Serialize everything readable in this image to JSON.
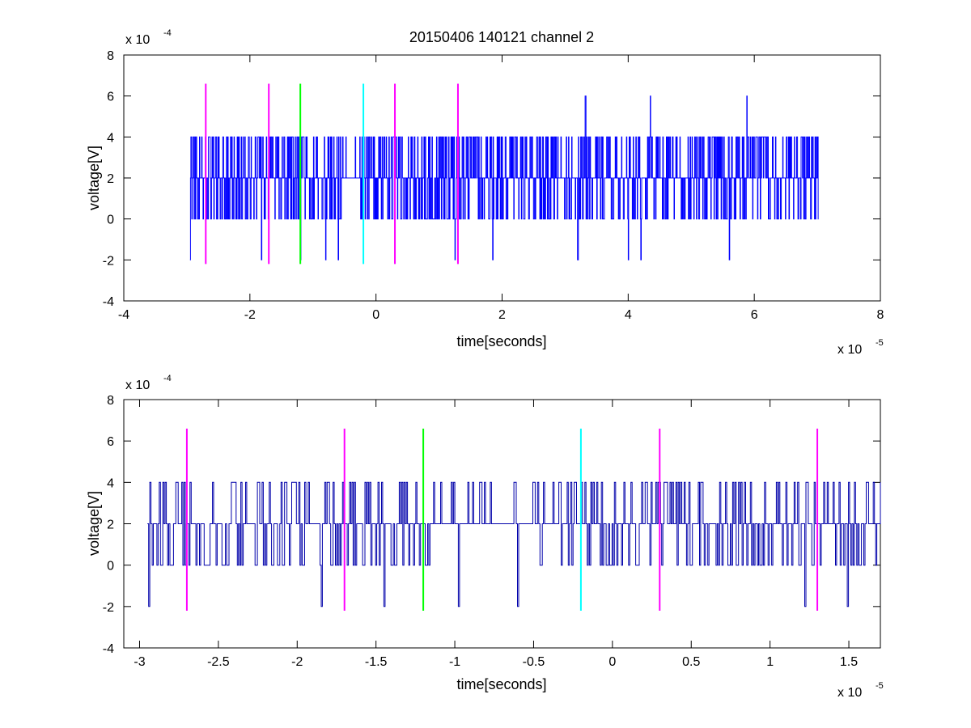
{
  "chart_data": [
    {
      "type": "line",
      "title": "20150406 140121 channel 2",
      "xlabel": "time[seconds]",
      "ylabel": "voltage[V]",
      "x_exponent_label": "x 10",
      "x_exponent": "-5",
      "y_exponent_label": "x 10",
      "y_exponent": "-4",
      "xlim": [
        -4,
        8
      ],
      "ylim": [
        -4,
        8
      ],
      "x_ticks": [
        -4,
        -2,
        0,
        2,
        4,
        6,
        8
      ],
      "x_tick_labels": [
        "-4",
        "-2",
        "0",
        "2",
        "4",
        "6",
        "8"
      ],
      "y_ticks": [
        -4,
        -2,
        0,
        2,
        4,
        6,
        8
      ],
      "y_tick_labels": [
        "-4",
        "-2",
        "0",
        "2",
        "4",
        "6",
        "8"
      ],
      "signal_color": "#0000ff",
      "signal": {
        "x_start": -2.95,
        "x_end": 7.02,
        "levels": [
          -2,
          0,
          2,
          4,
          6
        ],
        "spikes": [
          {
            "x": 3.32,
            "y": 6
          },
          {
            "x": 4.35,
            "y": 6
          },
          {
            "x": 5.88,
            "y": 6
          },
          {
            "x": -2.95,
            "y": -2
          },
          {
            "x": -1.82,
            "y": -2
          },
          {
            "x": -1.2,
            "y": -2
          },
          {
            "x": -0.8,
            "y": -2
          },
          {
            "x": -0.6,
            "y": -2
          },
          {
            "x": 1.25,
            "y": -2
          },
          {
            "x": 1.85,
            "y": -2
          },
          {
            "x": 3.2,
            "y": -2
          },
          {
            "x": 4.0,
            "y": -2
          },
          {
            "x": 4.2,
            "y": -2
          },
          {
            "x": 5.6,
            "y": -2
          }
        ]
      },
      "markers": [
        {
          "x": -2.7,
          "color": "#ff00ff"
        },
        {
          "x": -1.7,
          "color": "#ff00ff"
        },
        {
          "x": -1.2,
          "color": "#00ff00"
        },
        {
          "x": -0.2,
          "color": "#00ffff"
        },
        {
          "x": 0.3,
          "color": "#ff00ff"
        },
        {
          "x": 1.3,
          "color": "#ff00ff"
        }
      ],
      "marker_range": [
        -2.2,
        6.6
      ]
    },
    {
      "type": "line",
      "title": "",
      "xlabel": "time[seconds]",
      "ylabel": "voltage[V]",
      "x_exponent_label": "x 10",
      "x_exponent": "-5",
      "y_exponent_label": "x 10",
      "y_exponent": "-4",
      "xlim": [
        -3.1,
        1.7
      ],
      "ylim": [
        -4,
        8
      ],
      "x_ticks": [
        -3,
        -2.5,
        -2,
        -1.5,
        -1,
        -0.5,
        0,
        0.5,
        1,
        1.5
      ],
      "x_tick_labels": [
        "-3",
        "-2.5",
        "-2",
        "-1.5",
        "-1",
        "-0.5",
        "0",
        "0.5",
        "1",
        "1.5"
      ],
      "y_ticks": [
        -4,
        -2,
        0,
        2,
        4,
        6,
        8
      ],
      "y_tick_labels": [
        "-4",
        "-2",
        "0",
        "2",
        "4",
        "6",
        "8"
      ],
      "signal_color": "#0000aa",
      "signal": {
        "x_start": -2.95,
        "x_end": 1.7,
        "levels": [
          -2,
          0,
          2,
          4
        ],
        "spikes": [
          {
            "x": -2.94,
            "y": -2
          },
          {
            "x": -1.85,
            "y": -2
          },
          {
            "x": -1.45,
            "y": -2
          },
          {
            "x": -0.98,
            "y": -2
          },
          {
            "x": -0.6,
            "y": -2
          },
          {
            "x": 1.22,
            "y": -2
          },
          {
            "x": 1.49,
            "y": -2
          }
        ]
      },
      "markers": [
        {
          "x": -2.7,
          "color": "#ff00ff"
        },
        {
          "x": -1.7,
          "color": "#ff00ff"
        },
        {
          "x": -1.2,
          "color": "#00ff00"
        },
        {
          "x": -0.2,
          "color": "#00ffff"
        },
        {
          "x": 0.3,
          "color": "#ff00ff"
        },
        {
          "x": 1.3,
          "color": "#ff00ff"
        }
      ],
      "marker_range": [
        -2.2,
        6.6
      ]
    }
  ]
}
